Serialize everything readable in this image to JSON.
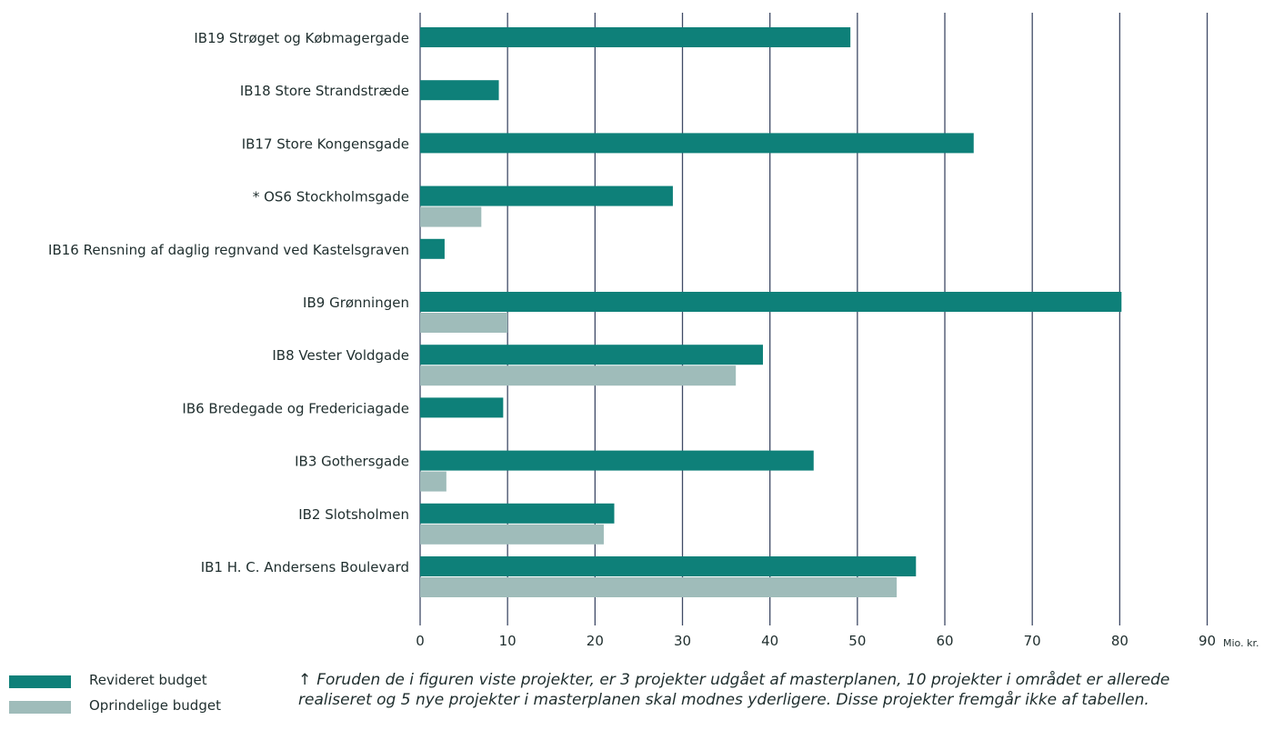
{
  "colors": {
    "revised": "#0e8079",
    "original": "#9fbcba",
    "grid": "#3f4a66",
    "text": "#1f2e2e"
  },
  "chart_data": {
    "type": "bar",
    "orientation": "horizontal",
    "categories": [
      "IB19 Strøget og Købmagergade",
      "IB18 Store Strandstræde",
      "IB17 Store Kongensgade",
      "* OS6 Stockholmsgade",
      "IB16 Rensning af daglig regnvand ved Kastelsgraven",
      "IB9 Grønningen",
      "IB8 Vester Voldgade",
      "IB6 Bredegade og Fredericiagade",
      "IB3 Gothersgade",
      "IB2 Slotsholmen",
      "IB1 H. C. Andersens Boulevard"
    ],
    "series": [
      {
        "name": "Revideret budget",
        "color": "#0e8079",
        "values": [
          49.2,
          9.0,
          63.3,
          28.9,
          2.8,
          80.2,
          39.2,
          9.5,
          45.0,
          22.2,
          56.7
        ]
      },
      {
        "name": "Oprindelige budget",
        "color": "#9fbcba",
        "values": [
          null,
          null,
          null,
          7.0,
          null,
          10.0,
          36.1,
          null,
          3.0,
          21.0,
          54.5
        ]
      }
    ],
    "xticks": [
      "0",
      "10",
      "20",
      "30",
      "40",
      "50",
      "60",
      "70",
      "80",
      "90"
    ],
    "xlim": [
      0,
      90
    ],
    "xlabel": "Mio. kr.",
    "ylabel": "",
    "title": "",
    "grid": "vertical",
    "legend_position": "bottom-left"
  },
  "note": {
    "arrow": "↑",
    "text": "Foruden de i figuren viste projekter, er 3 projekter udgået af masterplanen, 10 projekter i området er allerede realiseret og 5 nye projekter i masterplanen skal modnes yderligere. Disse projekter fremgår ikke af tabellen."
  }
}
